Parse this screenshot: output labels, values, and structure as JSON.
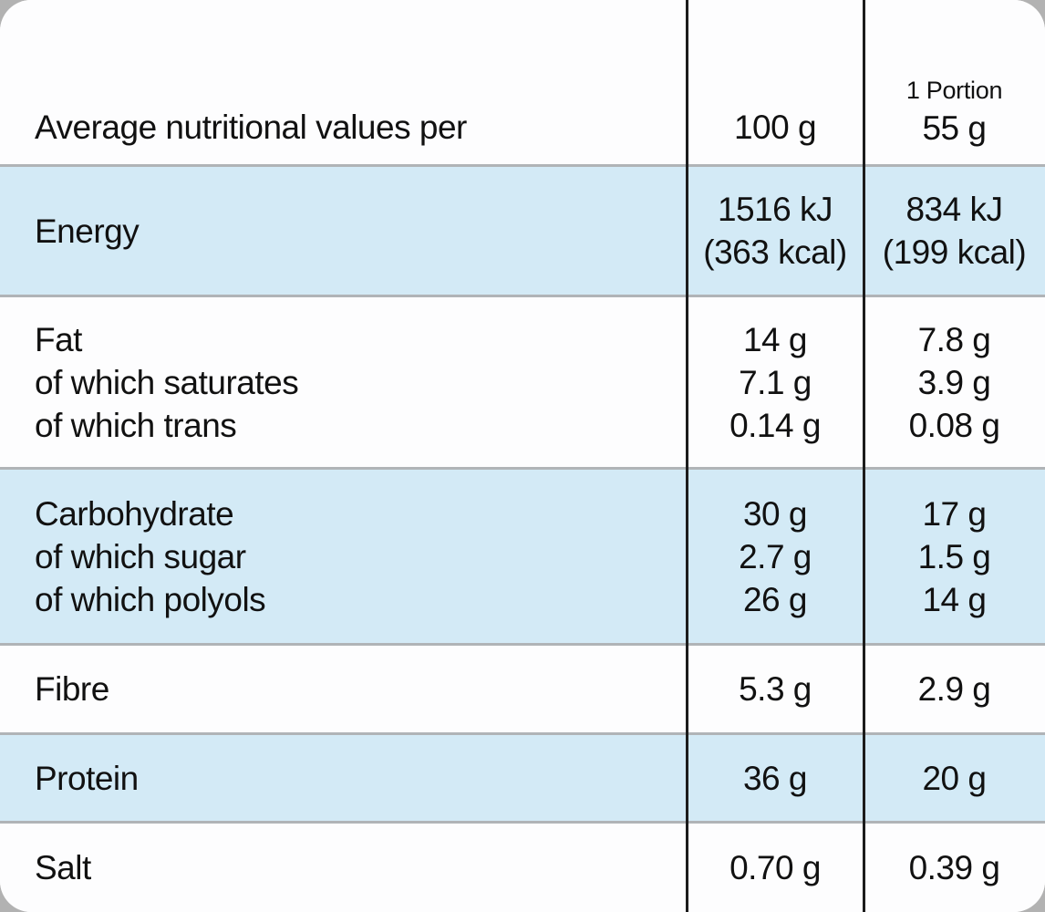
{
  "table": {
    "header": {
      "title": "Average nutritional values per",
      "per100": "100 g",
      "portion_line1": "1 Portion",
      "portion_line2": "55 g"
    },
    "rows": [
      {
        "name": "energy",
        "label": "Energy",
        "per100": "1516 kJ\n(363 kcal)",
        "portion": "834 kJ\n(199 kcal)"
      },
      {
        "name": "fat",
        "label": "Fat\nof which saturates\nof which trans",
        "per100": "14 g\n7.1 g\n0.14 g",
        "portion": "7.8 g\n3.9 g\n0.08 g"
      },
      {
        "name": "carbohydrate",
        "label": "Carbohydrate\nof which sugar\nof which polyols",
        "per100": "30 g\n2.7 g\n26 g",
        "portion": "17 g\n1.5 g\n14 g"
      },
      {
        "name": "fibre",
        "label": "Fibre",
        "per100": "5.3 g",
        "portion": "2.9 g"
      },
      {
        "name": "protein",
        "label": "Protein",
        "per100": "36 g",
        "portion": "20 g"
      },
      {
        "name": "salt",
        "label": "Salt",
        "per100": "0.70 g",
        "portion": "0.39 g"
      }
    ],
    "colors": {
      "shaded_row": "#d3eaf6",
      "plain_row": "#fdfdfe",
      "separator": "#b0b4b7",
      "column_line": "#1c1c1c",
      "text": "#111111",
      "page_background": "#b2b2b2"
    }
  }
}
